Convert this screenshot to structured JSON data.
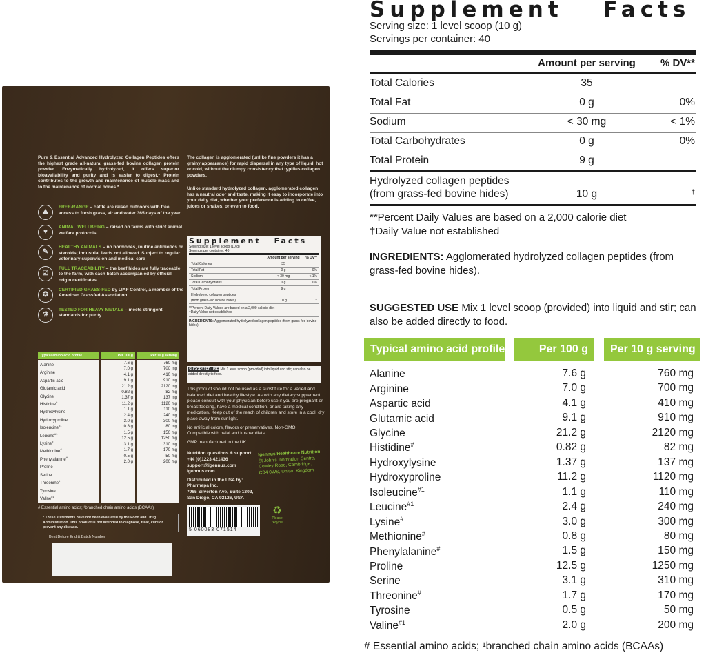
{
  "bag": {
    "intro": "Pure & Essential Advanced Hydrolyzed Collagen Peptides offers the highest grade all-natural grass-fed bovine collagen protein powder. Enzymatically hydrolyzed, it offers superior bioavailability and purity and is easier to digest.* Protein contributes to the growth and maintenance of muscle mass and to the maintenance of normal bones.*",
    "features": [
      {
        "icon": "field-icon",
        "title": "FREE-RANGE",
        "text": " – cattle are raised outdoors with free access to fresh grass, air and water 365 days of the year"
      },
      {
        "icon": "cow-heart-icon",
        "title": "ANIMAL WELLBEING",
        "text": " – raised on farms with strict animal welfare protocols"
      },
      {
        "icon": "syringe-crossed-icon",
        "title": "HEALTHY ANIMALS",
        "text": " – no hormones, routine antibiotics or steroids; industrial feeds not allowed. Subject to regular veterinary supervision and medical care"
      },
      {
        "icon": "certificate-icon",
        "title": "FULL TRACEABILITY",
        "text": " – the beef hides are fully traceable to the farm, with each batch accompanied by official origin certificates"
      },
      {
        "icon": "grassfed-badge-icon",
        "title": "CERTIFIED GRASS-FED",
        "text": " by LIAF Control, a member of the American Grassfed Association"
      },
      {
        "icon": "flask-icon",
        "title": "TESTED FOR HEAVY METALS",
        "text": " – meets stringent standards for purity"
      }
    ],
    "collagen_p1": "The collagen is agglomerated (unlike fine powders it has a grainy appearance) for rapid dispersal in any type of liquid, hot or cold, without the clumpy consistency that typifies collagen powders.",
    "collagen_p2": "Unlike standard hydrolyzed collagen, agglomerated collagen has a neutral odor and taste, making it easy to incorporate into your daily diet, whether your preference is adding to coffee, juices or shakes, or even to food.",
    "warnings": "This product should not be used as a substitute for a varied and balanced diet and healthy lifestyle. As with any dietary supplement, please consult with your physician before use if you are pregnant or breastfeeding, have a medical condition, or are taking any medication. Keep out of the reach of children and store in a cool, dry place away from sunlight.",
    "no_artificial": "No artificial colors, flavors or preservatives. Non-GMO. Compatible with halal and kosher diets.",
    "gmp": "GMP manufactured in the UK",
    "support_title": "Nutrition questions & support",
    "support_lines": [
      "+44 (0)1223 421436",
      "support@igennus.com",
      "igennus.com"
    ],
    "company_title": "Igennus Healthcare Nutrition",
    "company_lines": [
      "St John's Innovation Centre,",
      "Cowley Road, Cambridge,",
      "CB4 0WS, United Kingdom"
    ],
    "distributed_title": "Distributed in the USA by:",
    "distributed_lines": [
      "Pharmepa Inc.",
      "7965 Silverton Ave, Suite 1302,",
      "San Diego, CA 92126, USA"
    ],
    "fda": "* These statements have not been evaluated by the Food and Drug Administration. This product is not intended to diagnose, treat, cure or prevent any disease.",
    "best_before": "Best Before End & Batch Number",
    "barcode": "5 060083 071514",
    "recycle": "Please recycle"
  },
  "facts": {
    "title": "Supplement Facts",
    "serving_size": "Serving size: 1 level scoop (10 g)",
    "servings_per_container": "Servings per container: 40",
    "col_amount": "Amount per serving",
    "col_dv": "% DV**",
    "rows": [
      {
        "label": "Total Calories",
        "amount": "35",
        "dv": ""
      },
      {
        "label": "Total Fat",
        "amount": "0 g",
        "dv": "0%"
      },
      {
        "label": "Sodium",
        "amount": "< 30 mg",
        "dv": "< 1%"
      },
      {
        "label": "Total Carbohydrates",
        "amount": "0 g",
        "dv": "0%"
      },
      {
        "label": "Total Protein",
        "amount": "9 g",
        "dv": ""
      }
    ],
    "peptides_line1": "Hydrolyzed collagen peptides",
    "peptides_line2": "(from grass-fed bovine hides)",
    "peptides_amount": "10 g",
    "peptides_dv": "†",
    "note1": "**Percent Daily Values are based on a 2,000 calorie diet",
    "note2": "†Daily Value not established",
    "ingredients_label": "INGREDIENTS:",
    "ingredients": " Agglomerated hydrolyzed collagen peptides (from grass-fed bovine hides).",
    "suggested_label": "SUGGESTED USE",
    "suggested": "  Mix 1 level scoop (provided) into liquid and stir; can also be added directly to food."
  },
  "amino": {
    "col_name": "Typical amino acid profile",
    "col_100": "Per 100 g",
    "col_10": "Per 10 g serving",
    "rows": [
      {
        "name": "Alanine",
        "mark": "",
        "p100": "7.6 g",
        "p10": "760 mg"
      },
      {
        "name": "Arginine",
        "mark": "",
        "p100": "7.0 g",
        "p10": "700 mg"
      },
      {
        "name": "Aspartic acid",
        "mark": "",
        "p100": "4.1 g",
        "p10": "410 mg"
      },
      {
        "name": "Glutamic acid",
        "mark": "",
        "p100": "9.1 g",
        "p10": "910 mg"
      },
      {
        "name": "Glycine",
        "mark": "",
        "p100": "21.2 g",
        "p10": "2120 mg"
      },
      {
        "name": "Histidine",
        "mark": "#",
        "p100": "0.82 g",
        "p10": "82 mg"
      },
      {
        "name": "Hydroxylysine",
        "mark": "",
        "p100": "1.37 g",
        "p10": "137 mg"
      },
      {
        "name": "Hydroxyproline",
        "mark": "",
        "p100": "11.2 g",
        "p10": "1120 mg"
      },
      {
        "name": "Isoleucine",
        "mark": "#1",
        "p100": "1.1 g",
        "p10": "110 mg"
      },
      {
        "name": "Leucine",
        "mark": "#1",
        "p100": "2.4 g",
        "p10": "240 mg"
      },
      {
        "name": "Lysine",
        "mark": "#",
        "p100": "3.0 g",
        "p10": "300 mg"
      },
      {
        "name": "Methionine",
        "mark": "#",
        "p100": "0.8 g",
        "p10": "80 mg"
      },
      {
        "name": "Phenylalanine",
        "mark": "#",
        "p100": "1.5 g",
        "p10": "150 mg"
      },
      {
        "name": "Proline",
        "mark": "",
        "p100": "12.5 g",
        "p10": "1250 mg"
      },
      {
        "name": "Serine",
        "mark": "",
        "p100": "3.1 g",
        "p10": "310 mg"
      },
      {
        "name": "Threonine",
        "mark": "#",
        "p100": "1.7 g",
        "p10": "170 mg"
      },
      {
        "name": "Tyrosine",
        "mark": "",
        "p100": "0.5 g",
        "p10": "50 mg"
      },
      {
        "name": "Valine",
        "mark": "#1",
        "p100": "2.0 g",
        "p10": "200 mg"
      }
    ],
    "footnote": "# Essential amino acids; ¹branched chain amino acids (BCAAs)"
  },
  "colors": {
    "brand_green": "#94c83d",
    "bag_brown": "#3d2c1e"
  }
}
